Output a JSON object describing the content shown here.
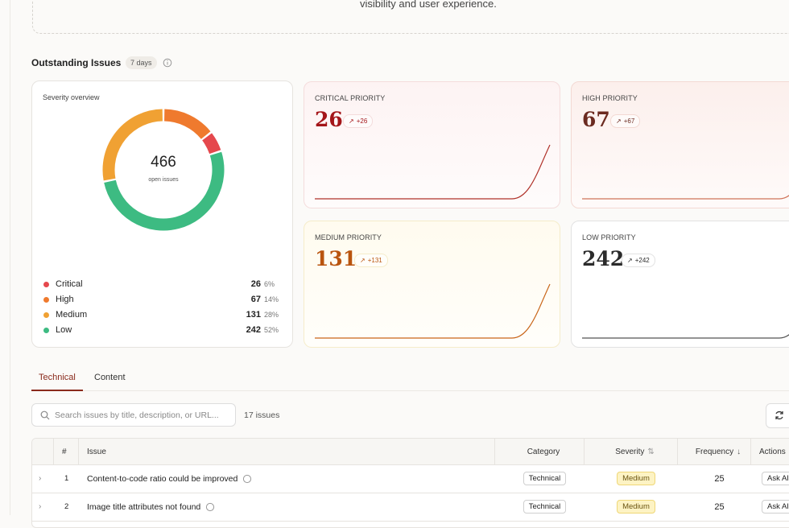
{
  "banner_text": "visibility and user experience.",
  "section": {
    "title": "Outstanding Issues",
    "badge": "7 days"
  },
  "severity": {
    "title": "Severity overview",
    "total": 466,
    "total_label": "open issues",
    "items": [
      {
        "name": "Critical",
        "count": 26,
        "percent": "6%",
        "color": "#e5484d"
      },
      {
        "name": "High",
        "count": 67,
        "percent": "14%",
        "color": "#ef7a2e"
      },
      {
        "name": "Medium",
        "count": 131,
        "percent": "28%",
        "color": "#f0a133"
      },
      {
        "name": "Low",
        "count": 242,
        "percent": "52%",
        "color": "#3dbb82"
      }
    ]
  },
  "priority_cards": [
    {
      "label": "CRITICAL PRIORITY",
      "value": 26,
      "delta": "+26",
      "color": "#a4161a",
      "background": "#fdf3f3",
      "border": "#f4dcdc",
      "line": "#b0322a"
    },
    {
      "label": "HIGH PRIORITY",
      "value": 67,
      "delta": "+67",
      "color": "#6b2a20",
      "background": "#fcefec",
      "border": "#f3d9d3",
      "line": "#d0745a"
    },
    {
      "label": "MEDIUM PRIORITY",
      "value": 131,
      "delta": "+131",
      "color": "#b9540e",
      "background": "#fffbef",
      "border": "#f5ecca",
      "line": "#c9661a"
    },
    {
      "label": "LOW PRIORITY",
      "value": 242,
      "delta": "+242",
      "color": "#2b2b2b",
      "background": "#ffffff",
      "border": "#e2e2e2",
      "line": "#555555"
    }
  ],
  "tabs": [
    "Technical",
    "Content"
  ],
  "search": {
    "placeholder": "Search issues by title, description, or URL...",
    "count": "17 issues"
  },
  "table": {
    "columns": [
      "#",
      "Issue",
      "Category",
      "Severity",
      "Frequency",
      "Actions"
    ],
    "rows": [
      [
        "1",
        "Content-to-code ratio could be improved",
        "Technical",
        "Medium",
        "25",
        "Ask AI"
      ],
      [
        "2",
        "Image title attributes not found",
        "Technical",
        "Medium",
        "25",
        "Ask AI"
      ]
    ]
  }
}
